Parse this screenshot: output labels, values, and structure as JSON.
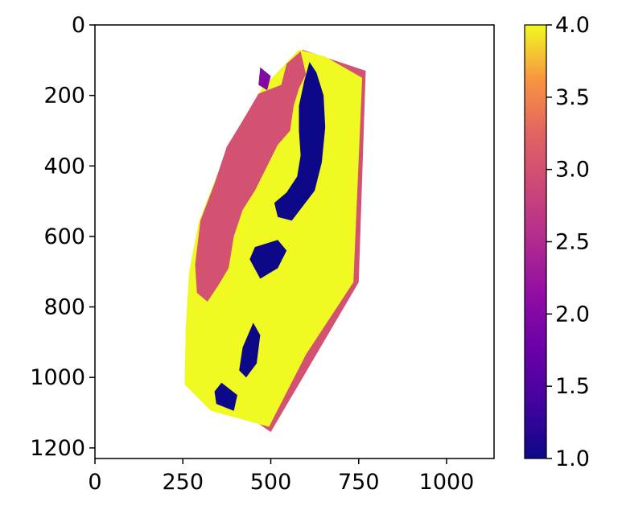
{
  "chart_data": {
    "type": "heatmap",
    "title": "",
    "xlabel": "",
    "ylabel": "",
    "x_ticks": [
      0,
      250,
      500,
      750,
      1000
    ],
    "y_ticks": [
      0,
      200,
      400,
      600,
      800,
      1000,
      1200
    ],
    "xlim": [
      0,
      1135
    ],
    "ylim": [
      1230,
      0
    ],
    "y_inverted": true,
    "grid": false,
    "colorbar": {
      "colormap": "plasma",
      "range": [
        1.0,
        4.0
      ],
      "ticks": [
        "1.0",
        "1.5",
        "2.0",
        "2.5",
        "3.0",
        "3.5",
        "4.0"
      ],
      "placement": "right"
    },
    "regions": [
      {
        "name": "outer-band",
        "value": 3.0,
        "polygon": [
          [
            590,
            70
          ],
          [
            770,
            130
          ],
          [
            750,
            730
          ],
          [
            500,
            1155
          ],
          [
            420,
            1100
          ]
        ]
      },
      {
        "name": "main-body",
        "value": 4.0,
        "polygon": [
          [
            580,
            70
          ],
          [
            475,
            180
          ],
          [
            385,
            330
          ],
          [
            330,
            470
          ],
          [
            295,
            560
          ],
          [
            268,
            700
          ],
          [
            258,
            860
          ],
          [
            255,
            1020
          ],
          [
            330,
            1095
          ],
          [
            495,
            1140
          ],
          [
            600,
            935
          ],
          [
            735,
            730
          ],
          [
            760,
            150
          ],
          [
            655,
            90
          ]
        ]
      },
      {
        "name": "inner-channel",
        "value": 3.0,
        "polygon": [
          [
            585,
            75
          ],
          [
            545,
            110
          ],
          [
            530,
            170
          ],
          [
            465,
            195
          ],
          [
            415,
            280
          ],
          [
            375,
            345
          ],
          [
            340,
            450
          ],
          [
            300,
            555
          ],
          [
            285,
            680
          ],
          [
            290,
            760
          ],
          [
            320,
            785
          ],
          [
            350,
            740
          ],
          [
            380,
            690
          ],
          [
            395,
            600
          ],
          [
            420,
            525
          ],
          [
            455,
            470
          ],
          [
            490,
            400
          ],
          [
            520,
            340
          ],
          [
            555,
            300
          ],
          [
            565,
            230
          ],
          [
            580,
            180
          ],
          [
            600,
            140
          ]
        ]
      },
      {
        "name": "dark-patch-1",
        "value": 1.0,
        "polygon": [
          [
            610,
            105
          ],
          [
            630,
            135
          ],
          [
            650,
            200
          ],
          [
            655,
            290
          ],
          [
            645,
            390
          ],
          [
            625,
            470
          ],
          [
            560,
            555
          ],
          [
            520,
            545
          ],
          [
            510,
            505
          ],
          [
            545,
            475
          ],
          [
            575,
            430
          ],
          [
            585,
            370
          ],
          [
            580,
            300
          ],
          [
            580,
            230
          ],
          [
            595,
            160
          ]
        ]
      },
      {
        "name": "dark-patch-2",
        "value": 1.0,
        "polygon": [
          [
            520,
            610
          ],
          [
            545,
            640
          ],
          [
            520,
            690
          ],
          [
            470,
            720
          ],
          [
            440,
            665
          ],
          [
            455,
            630
          ]
        ]
      },
      {
        "name": "dark-patch-3",
        "value": 1.0,
        "polygon": [
          [
            450,
            845
          ],
          [
            470,
            880
          ],
          [
            460,
            960
          ],
          [
            430,
            1000
          ],
          [
            410,
            980
          ],
          [
            420,
            915
          ]
        ]
      },
      {
        "name": "dark-patch-4",
        "value": 1.0,
        "polygon": [
          [
            360,
            1015
          ],
          [
            405,
            1050
          ],
          [
            395,
            1095
          ],
          [
            345,
            1075
          ],
          [
            340,
            1040
          ]
        ]
      },
      {
        "name": "mid-tone-streak",
        "value": 2.0,
        "polygon": [
          [
            470,
            120
          ],
          [
            500,
            145
          ],
          [
            490,
            185
          ],
          [
            465,
            170
          ]
        ]
      }
    ]
  }
}
